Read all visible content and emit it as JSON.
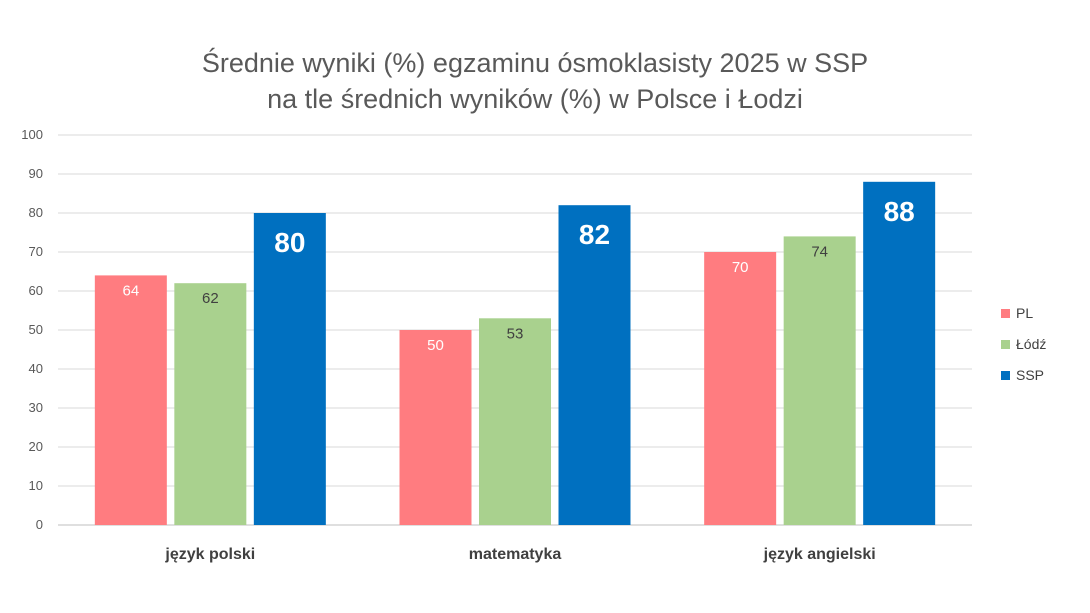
{
  "chart_data": {
    "type": "bar",
    "title": "Średnie wyniki (%) egzaminu ósmoklasisty 2025 w SSP",
    "subtitle": "na tle średnich wyników (%) w Polsce i Łodzi",
    "categories": [
      "język polski",
      "matematyka",
      "język angielski"
    ],
    "series": [
      {
        "name": "PL",
        "values": [
          64,
          50,
          70
        ],
        "color": "#ff7c80"
      },
      {
        "name": "Łódź",
        "values": [
          62,
          53,
          74
        ],
        "color": "#a9d18e"
      },
      {
        "name": "SSP",
        "values": [
          80,
          82,
          88
        ],
        "color": "#0070c0"
      }
    ],
    "ylim": [
      0,
      100
    ],
    "yticks": [
      0,
      10,
      20,
      30,
      40,
      50,
      60,
      70,
      80,
      90,
      100
    ],
    "grid": true,
    "legend": "right",
    "data_labels": true
  }
}
